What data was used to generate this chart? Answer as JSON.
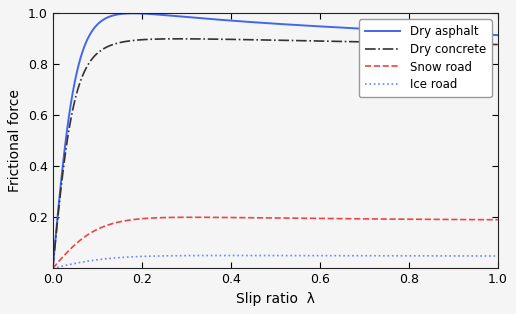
{
  "title": "",
  "xlabel": "Slip ratio  λ",
  "ylabel": "Frictional force",
  "xlim": [
    0,
    1.0
  ],
  "ylim": [
    0,
    1.0
  ],
  "xticks": [
    0,
    0.2,
    0.4,
    0.6,
    0.8,
    1.0
  ],
  "yticks": [
    0.2,
    0.4,
    0.6,
    0.8,
    1.0
  ],
  "series": [
    {
      "label": "Dry asphalt",
      "color": "#4466ee",
      "linestyle": "solid",
      "linewidth": 1.4,
      "B": 10,
      "C": 1.9,
      "D": 1.0,
      "E": 0.97
    },
    {
      "label": "Dry concrete",
      "color": "#333333",
      "linestyle": "dashdot",
      "linewidth": 1.2,
      "B": 11.7,
      "C": 1.69,
      "D": 0.9,
      "E": 0.97
    },
    {
      "label": "Snow road",
      "color": "#ee4444",
      "linestyle": "dashed",
      "linewidth": 1.2,
      "B": 5,
      "C": 2.0,
      "D": 0.2,
      "E": 1.0
    },
    {
      "label": "Ice road",
      "color": "#6688ff",
      "linestyle": "dotted",
      "linewidth": 1.2,
      "B": 4,
      "C": 2.0,
      "D": 0.05,
      "E": 1.0
    }
  ],
  "background_color": "#f5f5f5",
  "legend_loc": "upper right",
  "legend_fontsize": 8.5,
  "axis_fontsize": 10,
  "tick_fontsize": 9,
  "axis_color": "#222222"
}
